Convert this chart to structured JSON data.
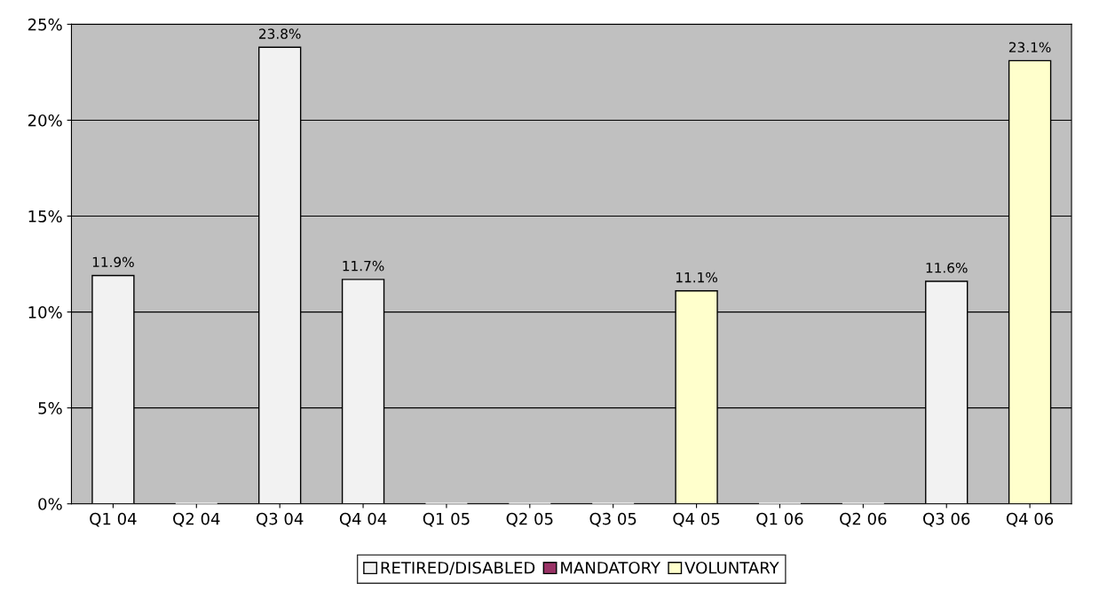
{
  "chart_data": {
    "type": "bar",
    "stacked": true,
    "categories": [
      "Q1 04",
      "Q2 04",
      "Q3 04",
      "Q4 04",
      "Q1 05",
      "Q2 05",
      "Q3 05",
      "Q4 05",
      "Q1 06",
      "Q2 06",
      "Q3 06",
      "Q4 06"
    ],
    "series": [
      {
        "name": "RETIRED/DISABLED",
        "color": "#f2f2f2",
        "values": [
          11.9,
          0,
          23.8,
          11.7,
          0,
          0,
          0,
          null,
          0,
          0,
          11.6,
          null
        ],
        "value_labels": [
          "11.9%",
          null,
          "23.8%",
          "11.7%",
          null,
          null,
          null,
          null,
          null,
          null,
          "11.6%",
          null
        ]
      },
      {
        "name": "MANDATORY",
        "color": "#993366",
        "values": [
          null,
          null,
          null,
          null,
          null,
          null,
          null,
          null,
          null,
          null,
          null,
          null
        ]
      },
      {
        "name": "VOLUNTARY",
        "color": "#ffffcc",
        "values": [
          null,
          null,
          null,
          null,
          null,
          null,
          null,
          11.1,
          null,
          null,
          null,
          23.1
        ],
        "value_labels": [
          null,
          null,
          null,
          null,
          null,
          null,
          null,
          "11.1%",
          null,
          null,
          null,
          "23.1%"
        ]
      }
    ],
    "ylim": [
      0,
      25
    ],
    "yticks": [
      {
        "value": 0,
        "label": "0%"
      },
      {
        "value": 5,
        "label": "5%"
      },
      {
        "value": 10,
        "label": "10%"
      },
      {
        "value": 15,
        "label": "15%"
      },
      {
        "value": 20,
        "label": "20%"
      },
      {
        "value": 25,
        "label": "25%"
      }
    ],
    "grid": "y",
    "legend": "bottom"
  }
}
